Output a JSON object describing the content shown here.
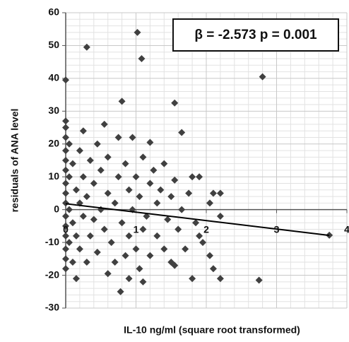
{
  "chart_data": {
    "type": "scatter",
    "x_label": "IL-10 ng/ml (square root transformed)",
    "y_label": "residuals of ANA level",
    "annotation": "β = -2.573  p = 0.001",
    "xlim": [
      0,
      4
    ],
    "ylim": [
      -30,
      60
    ],
    "xticks": [
      0,
      1,
      2,
      3,
      4
    ],
    "yticks": [
      -30,
      -20,
      -10,
      0,
      10,
      20,
      30,
      40,
      50,
      60
    ],
    "grid": true,
    "color": "#404040",
    "x": [
      0,
      0,
      0,
      0,
      0,
      0,
      0,
      0,
      0,
      0,
      0,
      0,
      0,
      0,
      0.05,
      0.05,
      0.05,
      0.05,
      0.1,
      0.1,
      0.1,
      0.15,
      0.15,
      0.2,
      0.2,
      0.2,
      0.25,
      0.25,
      0.25,
      0.3,
      0.3,
      0.35,
      0.35,
      0.4,
      0.4,
      0.45,
      0.45,
      0.5,
      0.5,
      0.55,
      0.6,
      0.6,
      0.65,
      0.7,
      0.7,
      0.75,
      0.75,
      0.8,
      0.85,
      0.85,
      0.9,
      0.9,
      0.95,
      0.95,
      1.0,
      1.0,
      1.05,
      1.05,
      1.1,
      1.1,
      1.15,
      1.2,
      1.2,
      1.25,
      1.3,
      1.3,
      1.35,
      1.4,
      1.4,
      1.45,
      1.5,
      1.5,
      1.55,
      1.6,
      1.65,
      1.7,
      1.75,
      1.85,
      1.9,
      1.02,
      0.3,
      1.08,
      0,
      2.8,
      0.8,
      1.55,
      2.75,
      3.75,
      0.78,
      0,
      0.55,
      1.65,
      1.2,
      1.8,
      1.9,
      2.1,
      2.2,
      2.05,
      2.2,
      1.95,
      2.05,
      2.1,
      2.2,
      1.8,
      1.55,
      0.15,
      1.1,
      0.9,
      0.6
    ],
    "y": [
      25,
      22,
      18,
      15,
      12,
      8,
      5,
      2,
      -2,
      -5,
      -8,
      -12,
      -15,
      -18,
      20,
      10,
      0,
      -10,
      14,
      -4,
      -16,
      6,
      -8,
      18,
      2,
      -12,
      24,
      10,
      -2,
      -16,
      4,
      15,
      -8,
      8,
      -3,
      20,
      -13,
      0,
      12,
      -6,
      5,
      16,
      -10,
      2,
      -16,
      10,
      22,
      -4,
      14,
      -14,
      6,
      -8,
      22,
      0,
      -12,
      10,
      4,
      -18,
      16,
      -6,
      -2,
      8,
      -14,
      12,
      -8,
      2,
      6,
      -12,
      14,
      -3,
      4,
      -16,
      9,
      -6,
      0,
      -12,
      5,
      -4,
      -8,
      54,
      49.5,
      46,
      39.5,
      40.5,
      33,
      32.5,
      -21.5,
      -7.8,
      -25,
      27,
      26,
      23.5,
      20.5,
      10,
      10,
      5,
      5,
      2,
      -2,
      -10,
      -14,
      -18,
      -21,
      -21,
      -17,
      -21,
      -22,
      -21,
      -19.5
    ],
    "trendline": {
      "x": [
        0,
        3.75
      ],
      "y": [
        1.8,
        -7.85
      ]
    }
  }
}
